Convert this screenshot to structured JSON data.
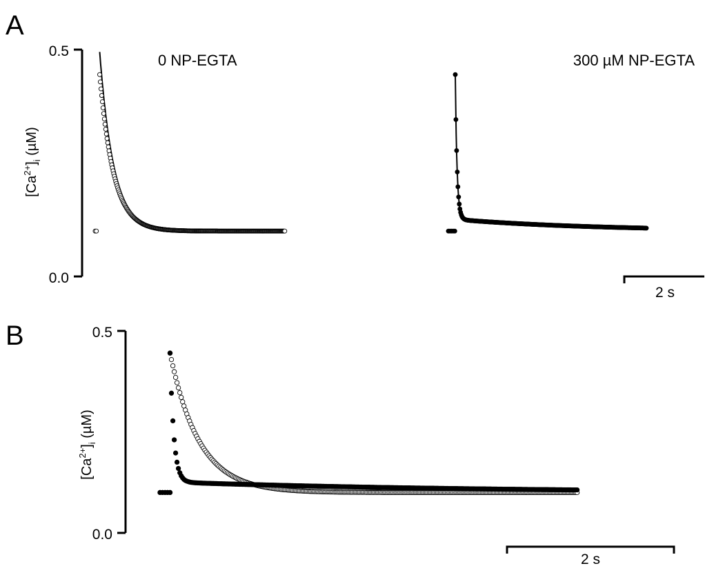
{
  "chart_data": [
    {
      "panel": "A",
      "type": "scatter",
      "ylabel": {
        "base": "[Ca",
        "sup": "2+",
        "mid": "]",
        "sub": "i",
        "tail": " (µM)"
      },
      "ylim": [
        0.0,
        0.5
      ],
      "yticks": [
        "0.5",
        "0.0"
      ],
      "scalebar": {
        "label": "2 s",
        "seconds": 2
      },
      "grid": false,
      "traces": [
        {
          "name": "0 NP-EGTA",
          "marker": "open-circle",
          "fit_line": true,
          "baseline": 0.1,
          "baseline_points": [
            0.0,
            0.03
          ],
          "peak": 0.445,
          "fit_peak": 0.495,
          "tau_fast": 0.35,
          "tau_slow": 0,
          "slow_fraction": 0,
          "decay_start": 0.06,
          "decay_end": 4.7
        },
        {
          "name": "300  µM NP-EGTA",
          "marker": "filled-circle",
          "fit_line": true,
          "baseline": 0.1,
          "baseline_points": [
            0.0,
            0.04,
            0.08,
            0.12,
            0.16
          ],
          "peak": 0.445,
          "fit_peak": 0.445,
          "tau_fast": 0.045,
          "tau_slow": 3.5,
          "slow_fraction": 0.075,
          "decay_start": 0.12,
          "decay_end": 4.9
        }
      ]
    },
    {
      "panel": "B",
      "type": "scatter",
      "ylabel": {
        "base": "[Ca",
        "sup": "2+",
        "mid": "]",
        "sub": "i",
        "tail": " (µM)"
      },
      "ylim": [
        0.0,
        0.5
      ],
      "yticks": [
        "0.5",
        "0.0"
      ],
      "scalebar": {
        "label": "2 s",
        "seconds": 2
      },
      "grid": false,
      "traces": [
        {
          "name": "0 NP-EGTA",
          "marker": "open-circle",
          "baseline": 0.1,
          "baseline_points": [
            0.0,
            0.03,
            0.06,
            0.09,
            0.12
          ],
          "peak": 0.445,
          "tau_fast": 0.35,
          "tau_slow": 0,
          "slow_fraction": 0,
          "decay_start": 0.12,
          "decay_end": 5.0
        },
        {
          "name": "300  µM NP-EGTA",
          "marker": "filled-circle",
          "baseline": 0.1,
          "baseline_points": [
            0.0,
            0.03,
            0.06,
            0.09,
            0.12
          ],
          "peak": 0.445,
          "tau_fast": 0.045,
          "tau_slow": 3.5,
          "slow_fraction": 0.075,
          "decay_start": 0.12,
          "decay_end": 5.0
        }
      ]
    }
  ]
}
